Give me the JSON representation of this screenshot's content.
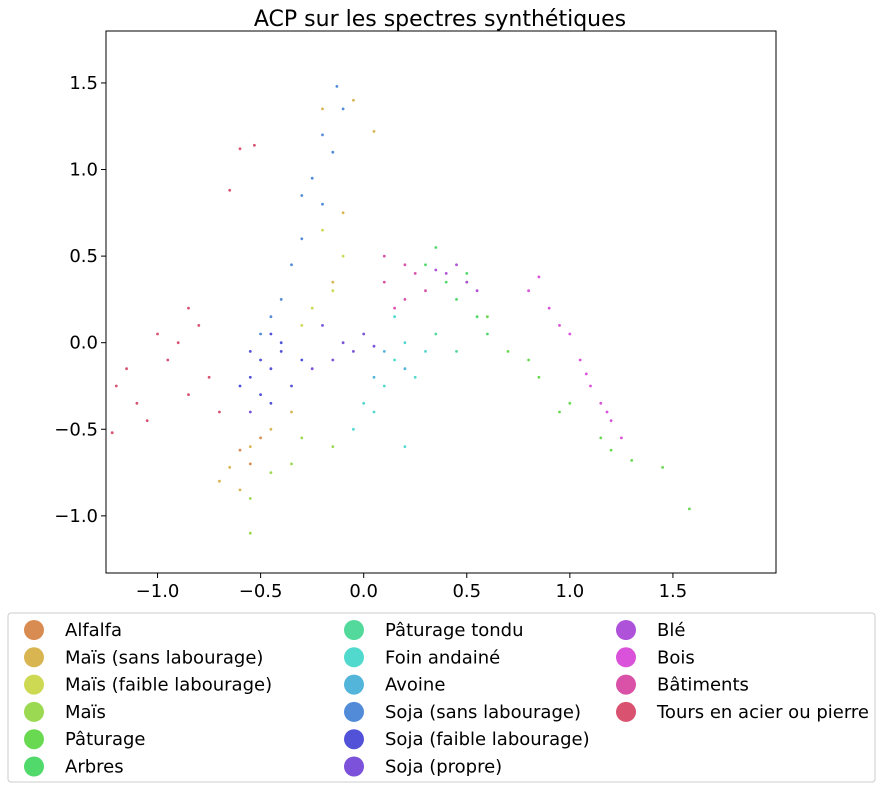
{
  "chart_data": {
    "type": "scatter",
    "title": "ACP sur les spectres synthétiques",
    "xlabel": "",
    "ylabel": "",
    "xlim": [
      -1.25,
      2.0
    ],
    "ylim": [
      -1.33,
      1.8
    ],
    "x_ticks": [
      -1.0,
      -0.5,
      0.0,
      0.5,
      1.0,
      1.5
    ],
    "x_tick_labels": [
      "−1.0",
      "−0.5",
      "0.0",
      "0.5",
      "1.0",
      "1.5"
    ],
    "y_ticks": [
      -1.0,
      -0.5,
      0.0,
      0.5,
      1.0,
      1.5
    ],
    "y_tick_labels": [
      "−1.0",
      "−0.5",
      "0.0",
      "0.5",
      "1.0",
      "1.5"
    ],
    "grid": false,
    "legend_position": "bottom-outside",
    "series": [
      {
        "name": "Alfalfa",
        "color": "#d98c52",
        "points": [
          [
            -0.6,
            -0.62
          ],
          [
            -0.55,
            -0.7
          ],
          [
            -0.5,
            -0.55
          ]
        ]
      },
      {
        "name": "Maïs (sans labourage)",
        "color": "#d9b552",
        "points": [
          [
            -0.65,
            -0.72
          ],
          [
            -0.7,
            -0.8
          ],
          [
            -0.55,
            -0.6
          ],
          [
            -0.45,
            -0.5
          ],
          [
            -0.6,
            -0.85
          ],
          [
            -0.35,
            -0.4
          ],
          [
            -0.2,
            1.35
          ],
          [
            -0.05,
            1.4
          ],
          [
            0.05,
            1.22
          ],
          [
            -0.1,
            0.75
          ],
          [
            -0.15,
            0.35
          ]
        ]
      },
      {
        "name": "Maïs (faible labourage)",
        "color": "#cdd952",
        "points": [
          [
            -0.25,
            0.2
          ],
          [
            -0.15,
            0.3
          ],
          [
            -0.3,
            0.1
          ],
          [
            -0.1,
            0.5
          ],
          [
            -0.2,
            0.65
          ]
        ]
      },
      {
        "name": "Maïs",
        "color": "#9bd952",
        "points": [
          [
            -0.55,
            -0.9
          ],
          [
            -0.45,
            -0.75
          ],
          [
            -0.3,
            -0.55
          ],
          [
            -0.15,
            -0.6
          ],
          [
            -0.55,
            -1.1
          ],
          [
            -0.35,
            -0.7
          ]
        ]
      },
      {
        "name": "Pâturage",
        "color": "#6ad952",
        "points": [
          [
            0.5,
            0.35
          ],
          [
            0.6,
            0.15
          ],
          [
            0.7,
            -0.05
          ],
          [
            0.85,
            -0.2
          ],
          [
            1.0,
            -0.35
          ],
          [
            1.15,
            -0.55
          ],
          [
            1.3,
            -0.68
          ],
          [
            1.45,
            -0.72
          ],
          [
            1.58,
            -0.96
          ],
          [
            0.95,
            -0.4
          ],
          [
            0.8,
            -0.1
          ],
          [
            1.2,
            -0.62
          ]
        ]
      },
      {
        "name": "Arbres",
        "color": "#52d96b",
        "points": [
          [
            0.3,
            0.45
          ],
          [
            0.4,
            0.35
          ],
          [
            0.45,
            0.25
          ],
          [
            0.55,
            0.15
          ],
          [
            0.35,
            0.55
          ],
          [
            0.5,
            0.4
          ],
          [
            0.6,
            0.05
          ]
        ]
      },
      {
        "name": "Pâturage tondu",
        "color": "#52d99b",
        "points": [
          [
            0.35,
            0.05
          ],
          [
            0.45,
            -0.05
          ]
        ]
      },
      {
        "name": "Foin andainé",
        "color": "#52d9cd",
        "points": [
          [
            0.15,
            -0.1
          ],
          [
            0.2,
            0.0
          ],
          [
            0.1,
            -0.25
          ],
          [
            0.25,
            -0.2
          ],
          [
            0.05,
            -0.4
          ],
          [
            0.3,
            -0.05
          ],
          [
            0.15,
            0.15
          ],
          [
            -0.05,
            -0.5
          ],
          [
            0.0,
            -0.35
          ],
          [
            0.2,
            -0.6
          ]
        ]
      },
      {
        "name": "Avoine",
        "color": "#52b5d9",
        "points": [
          [
            0.1,
            -0.05
          ],
          [
            0.2,
            -0.15
          ],
          [
            0.05,
            -0.2
          ]
        ]
      },
      {
        "name": "Soja (sans labourage)",
        "color": "#528cd9",
        "points": [
          [
            -0.2,
            0.8
          ],
          [
            -0.25,
            0.95
          ],
          [
            -0.15,
            1.1
          ],
          [
            -0.1,
            1.35
          ],
          [
            -0.3,
            0.6
          ],
          [
            -0.35,
            0.45
          ],
          [
            -0.4,
            0.25
          ],
          [
            -0.45,
            0.15
          ],
          [
            -0.5,
            0.05
          ],
          [
            -0.2,
            1.2
          ],
          [
            -0.13,
            1.48
          ],
          [
            -0.3,
            0.85
          ]
        ]
      },
      {
        "name": "Soja (faible labourage)",
        "color": "#5252d9",
        "points": [
          [
            -0.5,
            -0.1
          ],
          [
            -0.45,
            -0.15
          ],
          [
            -0.4,
            -0.05
          ],
          [
            -0.55,
            -0.2
          ],
          [
            -0.35,
            -0.25
          ],
          [
            -0.45,
            0.05
          ],
          [
            -0.5,
            -0.3
          ],
          [
            -0.4,
            0.0
          ],
          [
            -0.55,
            -0.05
          ],
          [
            -0.3,
            -0.1
          ],
          [
            -0.6,
            -0.25
          ],
          [
            -0.45,
            -0.35
          ]
        ]
      },
      {
        "name": "Soja (propre)",
        "color": "#7b52d9",
        "points": [
          [
            -0.1,
            0.0
          ],
          [
            -0.05,
            -0.05
          ],
          [
            0.0,
            0.05
          ],
          [
            -0.15,
            -0.1
          ],
          [
            0.05,
            -0.02
          ],
          [
            -0.2,
            0.1
          ],
          [
            -0.25,
            -0.15
          ],
          [
            -0.55,
            -0.4
          ]
        ]
      },
      {
        "name": "Blé",
        "color": "#ad52d9",
        "points": [
          [
            0.4,
            0.4
          ],
          [
            0.45,
            0.45
          ],
          [
            0.5,
            0.35
          ],
          [
            0.35,
            0.42
          ],
          [
            0.55,
            0.3
          ]
        ]
      },
      {
        "name": "Bois",
        "color": "#d952d9",
        "points": [
          [
            0.8,
            0.3
          ],
          [
            0.9,
            0.2
          ],
          [
            1.0,
            0.05
          ],
          [
            1.05,
            -0.1
          ],
          [
            1.1,
            -0.25
          ],
          [
            1.15,
            -0.35
          ],
          [
            1.2,
            -0.45
          ],
          [
            1.25,
            -0.55
          ],
          [
            0.95,
            0.1
          ],
          [
            1.08,
            -0.18
          ],
          [
            0.85,
            0.38
          ],
          [
            1.18,
            -0.4
          ]
        ]
      },
      {
        "name": "Bâtiments",
        "color": "#d952a7",
        "points": [
          [
            0.1,
            0.35
          ],
          [
            0.2,
            0.25
          ],
          [
            0.25,
            0.4
          ],
          [
            0.15,
            0.2
          ],
          [
            0.3,
            0.3
          ],
          [
            0.1,
            0.5
          ],
          [
            0.2,
            0.45
          ]
        ]
      },
      {
        "name": "Tours en acier ou pierre",
        "color": "#d95270",
        "points": [
          [
            -1.2,
            -0.25
          ],
          [
            -1.15,
            -0.15
          ],
          [
            -1.1,
            -0.35
          ],
          [
            -1.05,
            -0.45
          ],
          [
            -1.0,
            0.05
          ],
          [
            -0.95,
            -0.1
          ],
          [
            -0.9,
            0.0
          ],
          [
            -0.85,
            0.2
          ],
          [
            -0.8,
            0.1
          ],
          [
            -0.75,
            -0.2
          ],
          [
            -0.7,
            -0.4
          ],
          [
            -1.22,
            -0.52
          ],
          [
            -0.65,
            0.88
          ],
          [
            -0.6,
            1.12
          ],
          [
            -0.53,
            1.14
          ],
          [
            -0.85,
            -0.3
          ]
        ]
      }
    ]
  }
}
